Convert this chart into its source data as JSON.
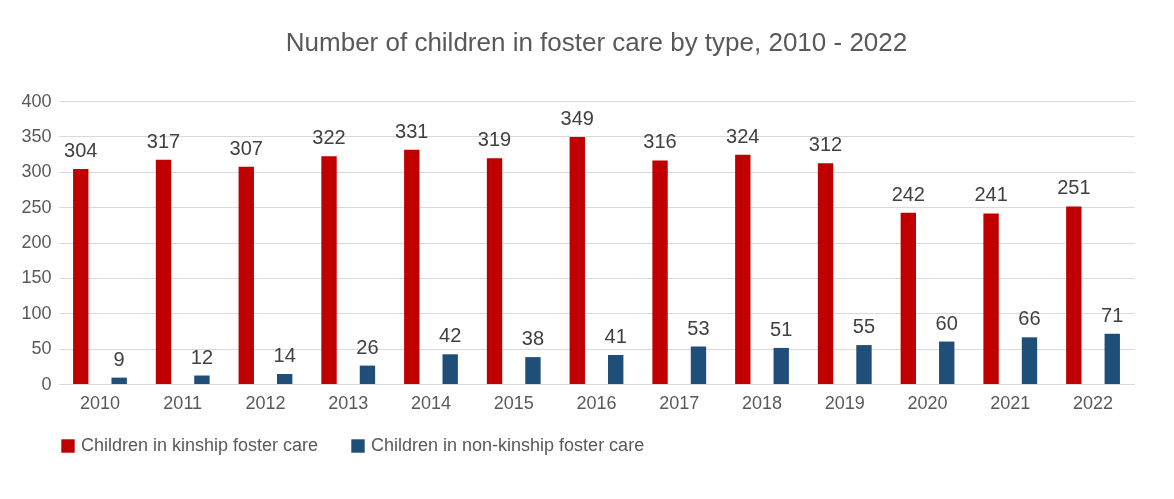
{
  "chart_data": {
    "type": "bar",
    "title": "Number of children in foster care by type, 2010 - 2022",
    "categories": [
      "2010",
      "2011",
      "2012",
      "2013",
      "2014",
      "2015",
      "2016",
      "2017",
      "2018",
      "2019",
      "2020",
      "2021",
      "2022"
    ],
    "series": [
      {
        "name": "Children in kinship foster care",
        "color": "#c00000",
        "values": [
          304,
          317,
          307,
          322,
          331,
          319,
          349,
          316,
          324,
          312,
          242,
          241,
          251
        ]
      },
      {
        "name": "Children in non-kinship foster care",
        "color": "#1f4e79",
        "values": [
          9,
          12,
          14,
          26,
          42,
          38,
          41,
          53,
          51,
          55,
          60,
          66,
          71
        ]
      }
    ],
    "ylim": [
      0,
      400
    ],
    "yticks": [
      0,
      50,
      100,
      150,
      200,
      250,
      300,
      350,
      400
    ],
    "grid": "y",
    "legend": "bottom",
    "data_labels": true
  }
}
